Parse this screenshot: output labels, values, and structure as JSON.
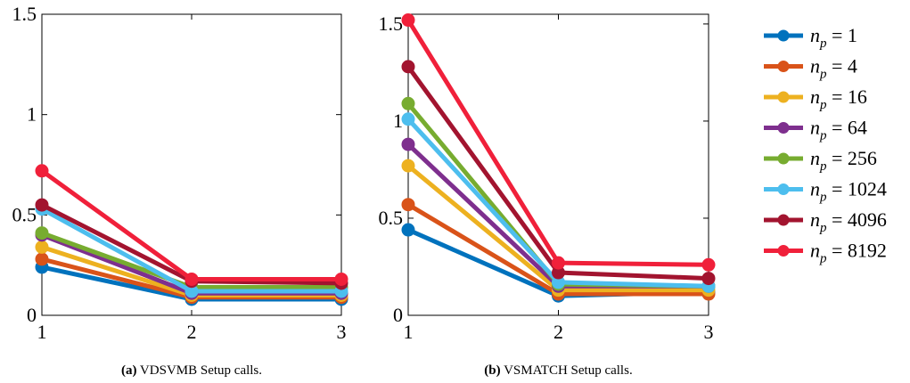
{
  "chart_data": [
    {
      "id": "a",
      "type": "line",
      "x": [
        1,
        2,
        3
      ],
      "xticks": [
        "1",
        "2",
        "3"
      ],
      "yticks": [
        "0",
        "0.5",
        "1",
        "1.5"
      ],
      "ytick_values": [
        0,
        0.5,
        1,
        1.5
      ],
      "xlim": [
        1,
        3
      ],
      "ylim": [
        0,
        1.5
      ],
      "grid": false,
      "caption_label": "(a)",
      "caption_text": " VDSVMB Setup calls.",
      "series": [
        {
          "name": "n_p = 1",
          "color": "#0072BD",
          "values": [
            0.24,
            0.08,
            0.08
          ]
        },
        {
          "name": "n_p = 4",
          "color": "#D95319",
          "values": [
            0.28,
            0.09,
            0.09
          ]
        },
        {
          "name": "n_p = 16",
          "color": "#EDB120",
          "values": [
            0.34,
            0.1,
            0.1
          ]
        },
        {
          "name": "n_p = 64",
          "color": "#7E2F8E",
          "values": [
            0.4,
            0.11,
            0.11
          ]
        },
        {
          "name": "n_p = 256",
          "color": "#77AC30",
          "values": [
            0.41,
            0.14,
            0.14
          ]
        },
        {
          "name": "n_p = 1024",
          "color": "#4DBEEE",
          "values": [
            0.53,
            0.12,
            0.12
          ]
        },
        {
          "name": "n_p = 4096",
          "color": "#A2142F",
          "values": [
            0.55,
            0.17,
            0.16
          ]
        },
        {
          "name": "n_p = 8192",
          "color": "#F0203A",
          "values": [
            0.72,
            0.18,
            0.18
          ]
        }
      ]
    },
    {
      "id": "b",
      "type": "line",
      "x": [
        1,
        2,
        3
      ],
      "xticks": [
        "1",
        "2",
        "3"
      ],
      "yticks": [
        "0",
        "0.5",
        "1",
        "1.5"
      ],
      "ytick_values": [
        0,
        0.5,
        1,
        1.5
      ],
      "xlim": [
        1,
        3
      ],
      "ylim": [
        0,
        1.55
      ],
      "grid": false,
      "caption_label": "(b)",
      "caption_text": " VSMATCH Setup calls.",
      "series": [
        {
          "name": "n_p = 1",
          "color": "#0072BD",
          "values": [
            0.44,
            0.1,
            0.12
          ]
        },
        {
          "name": "n_p = 4",
          "color": "#D95319",
          "values": [
            0.57,
            0.11,
            0.11
          ]
        },
        {
          "name": "n_p = 16",
          "color": "#EDB120",
          "values": [
            0.77,
            0.13,
            0.13
          ]
        },
        {
          "name": "n_p = 64",
          "color": "#7E2F8E",
          "values": [
            0.88,
            0.15,
            0.15
          ]
        },
        {
          "name": "n_p = 256",
          "color": "#77AC30",
          "values": [
            1.09,
            0.16,
            0.15
          ]
        },
        {
          "name": "n_p = 1024",
          "color": "#4DBEEE",
          "values": [
            1.01,
            0.17,
            0.15
          ]
        },
        {
          "name": "n_p = 4096",
          "color": "#A2142F",
          "values": [
            1.28,
            0.22,
            0.19
          ]
        },
        {
          "name": "n_p = 8192",
          "color": "#F0203A",
          "values": [
            1.52,
            0.27,
            0.26
          ]
        }
      ]
    }
  ],
  "legend": {
    "placement": "right",
    "entries": [
      {
        "value": "1",
        "color": "#0072BD"
      },
      {
        "value": "4",
        "color": "#D95319"
      },
      {
        "value": "16",
        "color": "#EDB120"
      },
      {
        "value": "64",
        "color": "#7E2F8E"
      },
      {
        "value": "256",
        "color": "#77AC30"
      },
      {
        "value": "1024",
        "color": "#4DBEEE"
      },
      {
        "value": "4096",
        "color": "#A2142F"
      },
      {
        "value": "8192",
        "color": "#F0203A"
      }
    ]
  }
}
